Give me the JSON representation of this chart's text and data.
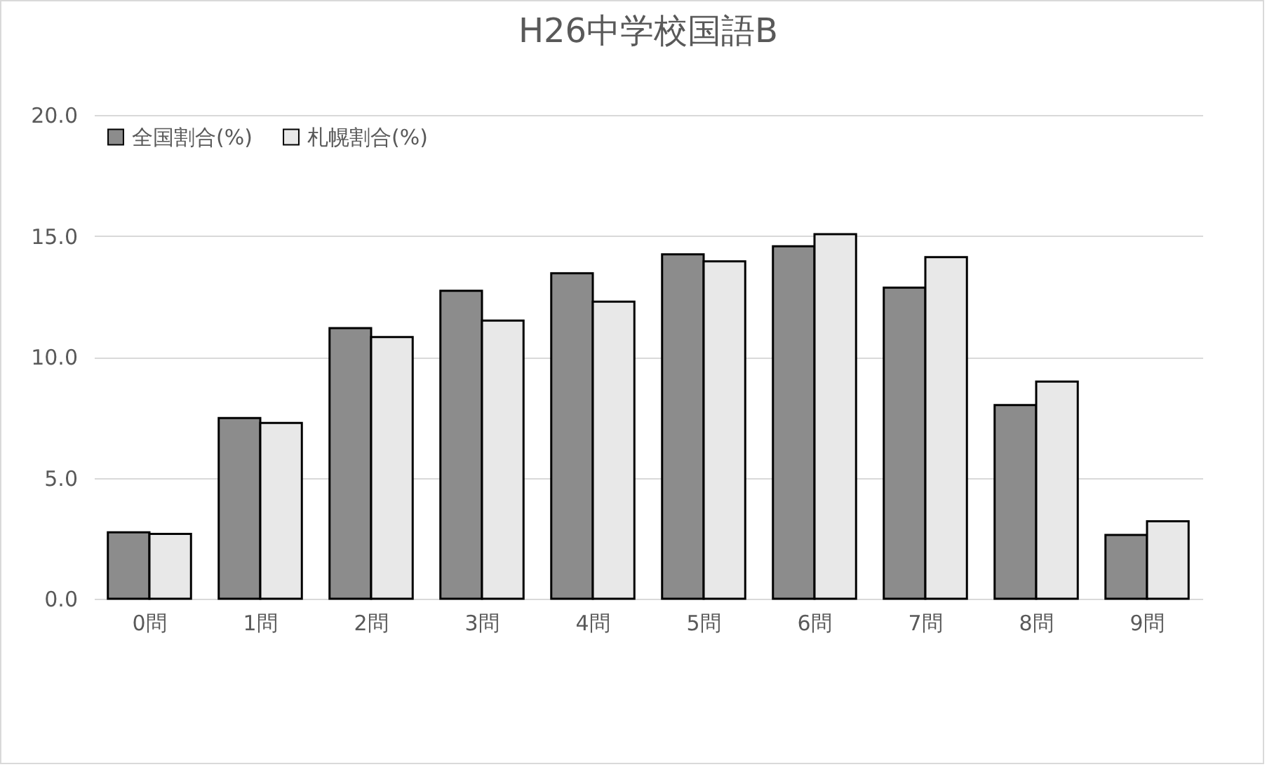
{
  "chart_data": {
    "type": "bar",
    "title": "H26中学校国語B",
    "categories": [
      "0問",
      "1問",
      "2問",
      "3問",
      "4問",
      "5問",
      "6問",
      "7問",
      "8問",
      "9問"
    ],
    "series": [
      {
        "name": "全国割合(%)",
        "color": "#8c8c8c",
        "values": [
          2.75,
          7.47,
          11.19,
          12.73,
          13.46,
          14.24,
          14.57,
          12.86,
          8.01,
          2.64
        ]
      },
      {
        "name": "札幌割合(%)",
        "color": "#e8e8e8",
        "values": [
          2.68,
          7.27,
          10.82,
          11.5,
          12.28,
          13.95,
          15.07,
          14.12,
          8.98,
          3.2
        ]
      }
    ],
    "ylim": [
      0,
      20
    ],
    "yticks": [
      {
        "value": 0,
        "label": "0.0"
      },
      {
        "value": 5,
        "label": "5.0"
      },
      {
        "value": 10,
        "label": "10.0"
      },
      {
        "value": 15,
        "label": "15.0"
      },
      {
        "value": 20,
        "label": "20.0"
      }
    ],
    "grid": "y",
    "legend": "top left"
  }
}
